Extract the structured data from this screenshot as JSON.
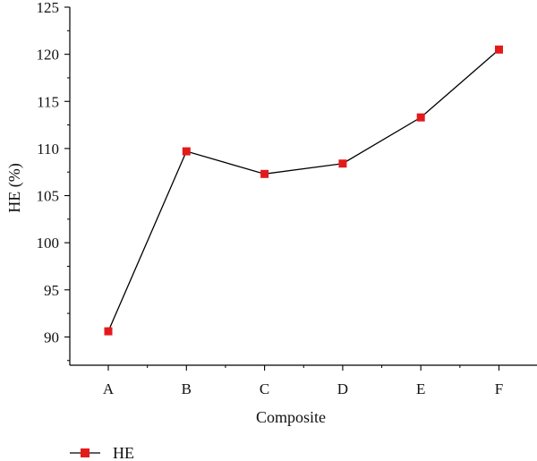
{
  "chart_data": {
    "type": "line",
    "title": "",
    "xlabel": "Composite",
    "ylabel": "HE (%)",
    "categories": [
      "A",
      "B",
      "C",
      "D",
      "E",
      "F"
    ],
    "series": [
      {
        "name": "HE",
        "values": [
          90.6,
          109.7,
          107.3,
          108.4,
          113.3,
          120.5
        ]
      }
    ],
    "ylim": [
      87,
      125
    ],
    "yticks": [
      90,
      95,
      100,
      105,
      110,
      115,
      120,
      125
    ],
    "grid": false,
    "legend": "bottom-left",
    "colors": {
      "line": "#000000",
      "marker": "#e31a1c"
    }
  }
}
